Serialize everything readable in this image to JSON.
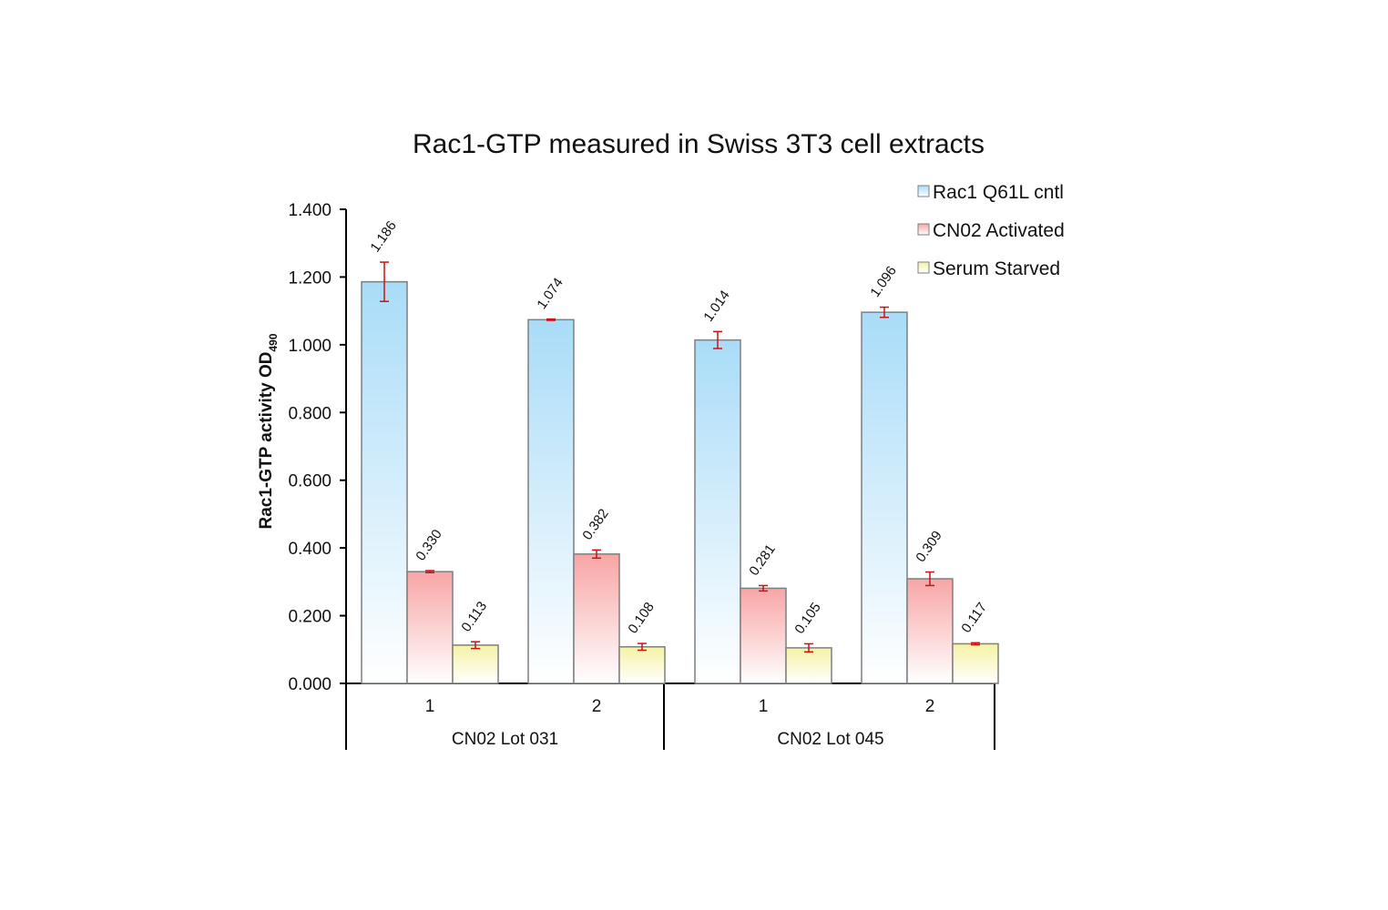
{
  "colors": {
    "series_top": [
      "#a9dcf8",
      "#f8a5a5",
      "#f5f3a5"
    ],
    "series_bottom": [
      "#ffffff",
      "#ffffff",
      "#ffffff"
    ],
    "bar_edge": "#7f7f7f",
    "error": "#cc1111",
    "axis": "#000000"
  },
  "chart_data": {
    "type": "bar",
    "title": "Rac1-GTP measured in Swiss 3T3 cell extracts",
    "ylabel_main": "Rac1-GTP activity  OD",
    "ylabel_sub": "490",
    "xlabel": "",
    "ylim": [
      0,
      1.4
    ],
    "yticks": [
      0,
      0.2,
      0.4,
      0.6,
      0.8,
      1.0,
      1.2,
      1.4
    ],
    "ytick_labels": [
      "0.000",
      "0.200",
      "0.400",
      "0.600",
      "0.800",
      "1.000",
      "1.200",
      "1.400"
    ],
    "categories": [
      "1",
      "2",
      "1",
      "2"
    ],
    "groups": [
      {
        "label": "CN02 Lot 031",
        "span": [
          0,
          1
        ]
      },
      {
        "label": "CN02 Lot 045",
        "span": [
          2,
          3
        ]
      }
    ],
    "series": [
      {
        "name": "Rac1 Q61L cntl",
        "values": [
          1.186,
          1.074,
          1.014,
          1.096
        ],
        "labels": [
          "1.186",
          "1.074",
          "1.014",
          "1.096"
        ],
        "errors": [
          0.058,
          0.002,
          0.025,
          0.015
        ]
      },
      {
        "name": "CN02 Activated",
        "values": [
          0.33,
          0.382,
          0.281,
          0.309
        ],
        "labels": [
          "0.330",
          "0.382",
          "0.281",
          "0.309"
        ],
        "errors": [
          0.003,
          0.012,
          0.008,
          0.02
        ]
      },
      {
        "name": "Serum Starved",
        "values": [
          0.113,
          0.108,
          0.105,
          0.117
        ],
        "labels": [
          "0.113",
          "0.108",
          "0.105",
          "0.117"
        ],
        "errors": [
          0.01,
          0.01,
          0.012,
          0.003
        ]
      }
    ],
    "legend_position": "top-right",
    "grid": false
  }
}
